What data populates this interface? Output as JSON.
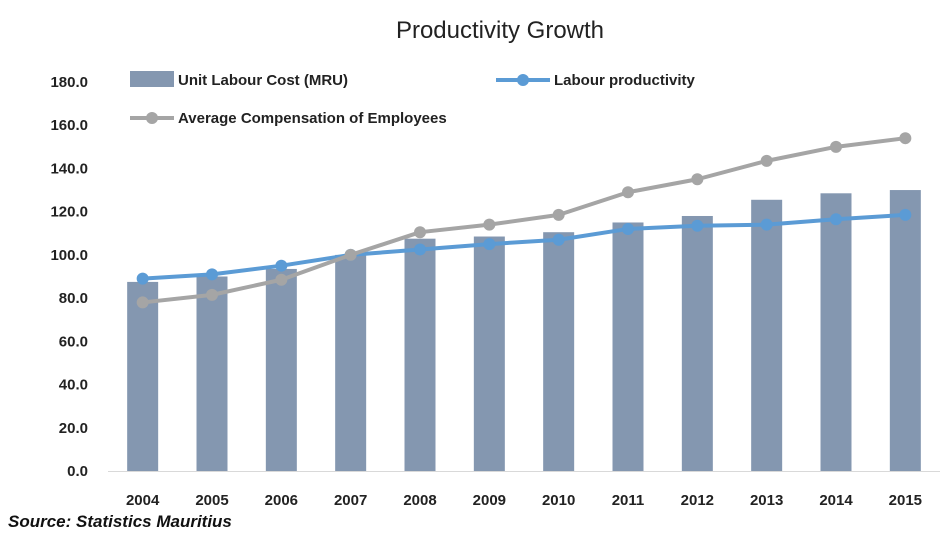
{
  "chart_data": {
    "type": "bar",
    "title": "Productivity Growth",
    "categories": [
      "2004",
      "2005",
      "2006",
      "2007",
      "2008",
      "2009",
      "2010",
      "2011",
      "2012",
      "2013",
      "2014",
      "2015"
    ],
    "yticks": [
      "0.0",
      "20.0",
      "40.0",
      "60.0",
      "80.0",
      "100.0",
      "120.0",
      "140.0",
      "160.0",
      "180.0"
    ],
    "ylim": [
      0,
      180
    ],
    "series": [
      {
        "name": "Unit Labour Cost (MRU)",
        "kind": "bar",
        "color": "#8497b0",
        "values": [
          87.5,
          90.0,
          93.5,
          100.0,
          107.5,
          108.5,
          110.5,
          115.0,
          118.0,
          125.5,
          128.5,
          130.0
        ]
      },
      {
        "name": "Labour productivity",
        "kind": "line",
        "color": "#5b9bd5",
        "values": [
          89.0,
          91.0,
          95.0,
          100.0,
          102.5,
          105.0,
          107.0,
          112.0,
          113.5,
          114.0,
          116.5,
          118.5
        ]
      },
      {
        "name": "Average Compensation of Employees",
        "kind": "line",
        "color": "#a5a5a5",
        "values": [
          78.0,
          81.5,
          88.5,
          100.0,
          110.5,
          114.0,
          118.5,
          129.0,
          135.0,
          143.5,
          150.0,
          154.0
        ]
      }
    ],
    "grid": false,
    "legend": "top"
  },
  "source_text": "Source:  Statistics Mauritius"
}
